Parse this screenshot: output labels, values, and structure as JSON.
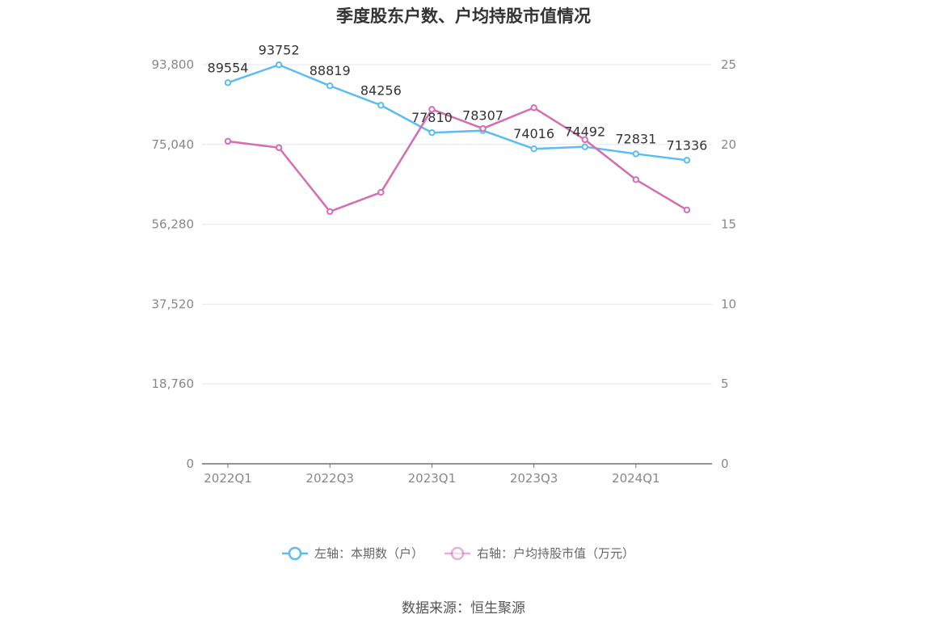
{
  "title": "季度股东户数、户均持股市值情况",
  "source": "数据来源：恒生聚源",
  "chart_data": {
    "type": "line",
    "title": "季度股东户数、户均持股市值情况",
    "x_tick_labels": [
      "2022Q1",
      "2022Q3",
      "2023Q1",
      "2023Q3",
      "2024Q1"
    ],
    "categories": [
      "2022Q1",
      "2022Q2",
      "2022Q3",
      "2022Q4",
      "2023Q1",
      "2023Q2",
      "2023Q3",
      "2023Q4",
      "2024Q1",
      "2024Q2"
    ],
    "y_left": {
      "ylim": [
        0,
        93800
      ],
      "ticks": [
        "0",
        "18,760",
        "37,520",
        "56,280",
        "75,040",
        "93,800"
      ]
    },
    "y_right": {
      "ylim": [
        0,
        25
      ],
      "ticks": [
        "0",
        "5",
        "10",
        "15",
        "20",
        "25"
      ]
    },
    "series": [
      {
        "name": "左轴：本期数（户）",
        "axis": "left",
        "color": "#5bbcf0",
        "values": [
          89554,
          93752,
          88819,
          84256,
          77810,
          78307,
          74016,
          74492,
          72831,
          71336
        ],
        "labels": [
          "89554",
          "93752",
          "88819",
          "84256",
          "77810",
          "78307",
          "74016",
          "74492",
          "72831",
          "71336"
        ]
      },
      {
        "name": "右轴：户均持股市值（万元）",
        "axis": "right",
        "color": "#d46eb3",
        "values": [
          20.2,
          19.8,
          15.8,
          17.0,
          22.2,
          21.0,
          22.3,
          20.3,
          17.8,
          15.9
        ]
      }
    ],
    "grid": true,
    "legend_position": "bottom"
  }
}
